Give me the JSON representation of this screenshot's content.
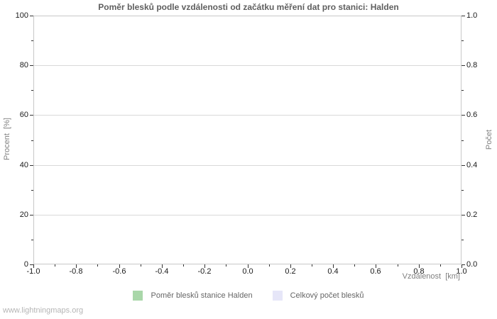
{
  "watermark": "www.lightningmaps.org",
  "colors": {
    "title": "#5f5f5f",
    "tick_label": "#1a1a1a",
    "axis_label": "#808080",
    "grid": "#d9d9d9",
    "plot_border": "#c8c8c8",
    "tick": "#333333",
    "legend_text": "#666666",
    "watermark": "#b5b5b5"
  },
  "chart_data": {
    "type": "bar",
    "title": "Poměr blesků podle vzdálenosti od začátku měření dat pro stanici: Halden",
    "x_axis": {
      "label": "Vzdálenost  [km]",
      "min": -1.0,
      "max": 1.0,
      "major_ticks": [
        -1.0,
        -0.8,
        -0.6,
        -0.4,
        -0.2,
        0.0,
        0.2,
        0.4,
        0.6,
        0.8,
        1.0
      ],
      "tick_labels": [
        "-1.0",
        "-0.8",
        "-0.6",
        "-0.4",
        "-0.2",
        "0.0",
        "0.2",
        "0.4",
        "0.6",
        "0.8",
        "1.0"
      ],
      "minor_step": 0.1
    },
    "y_left": {
      "label": "Procent  [%]",
      "min": 0,
      "max": 100,
      "major_ticks": [
        0,
        20,
        40,
        60,
        80,
        100
      ],
      "tick_labels": [
        "0",
        "20",
        "40",
        "60",
        "80",
        "100"
      ],
      "minor_step": 10
    },
    "y_right": {
      "label": "Počet",
      "min": 0.0,
      "max": 1.0,
      "major_ticks": [
        0.0,
        0.2,
        0.4,
        0.6,
        0.8,
        1.0
      ],
      "tick_labels": [
        "0.0",
        "0.2",
        "0.4",
        "0.6",
        "0.8",
        "1.0"
      ],
      "minor_step": 0.1
    },
    "grid": "horizontal-major",
    "legend_position": "bottom-center",
    "series": [
      {
        "name": "Poměr blesků stanice Halden",
        "color": "#a9d7a9",
        "axis": "left",
        "values": []
      },
      {
        "name": "Celkový počet blesků",
        "color": "#e6e6f8",
        "axis": "right",
        "values": []
      }
    ]
  }
}
